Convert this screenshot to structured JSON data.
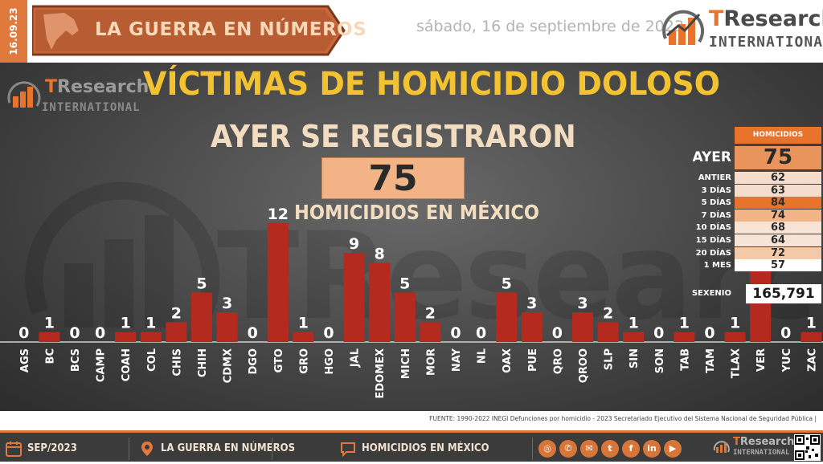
{
  "header": {
    "date_tab": "16.09.23",
    "banner_title": "LA GUERRA EN NÚMEROS",
    "date_long": "sábado, 16 de septiembre de 2023",
    "logo_brand": "TResearch",
    "logo_sub": "INTERNATIONAL"
  },
  "panel": {
    "title": "VÍCTIMAS DE HOMICIDIO DOLOSO",
    "subtitle": "AYER SE REGISTRARON",
    "big_number": "75",
    "big_label": "HOMICIDIOS EN MÉXICO",
    "logo_brand": "TResearch",
    "logo_sub": "INTERNATIONAL",
    "watermark": "TResearch"
  },
  "side_table": {
    "header": "HOMICIDIOS",
    "ayer_label": "AYER",
    "ayer_value": "75",
    "rows": [
      {
        "label": "ANTIER",
        "value": "62",
        "color": "#f5dccb"
      },
      {
        "label": "3 DÍAS",
        "value": "63",
        "color": "#f5dccb"
      },
      {
        "label": "5 DÍAS",
        "value": "84",
        "color": "#e8742c"
      },
      {
        "label": "7 DÍAS",
        "value": "74",
        "color": "#f2b486"
      },
      {
        "label": "10 DÍAS",
        "value": "68",
        "color": "#f8e4d6"
      },
      {
        "label": "15 DÍAS",
        "value": "64",
        "color": "#f8e4d6"
      },
      {
        "label": "20 DÍAS",
        "value": "72",
        "color": "#f4c9a8"
      },
      {
        "label": "1 MES",
        "value": "57",
        "color": "#ffffff"
      }
    ],
    "sexenio_label": "SEXENIO",
    "sexenio_value": "165,791"
  },
  "chart_data": {
    "type": "bar",
    "categories": [
      "AGS",
      "BC",
      "BCS",
      "CAMP",
      "COAH",
      "COL",
      "CHIS",
      "CHIH",
      "CDMX",
      "DGO",
      "GTO",
      "GRO",
      "HGO",
      "JAL",
      "EDOMEX",
      "MICH",
      "MOR",
      "NAY",
      "NL",
      "OAX",
      "PUE",
      "QRO",
      "QROO",
      "SLP",
      "SIN",
      "SON",
      "TAB",
      "TAM",
      "TLAX",
      "VER",
      "YUC",
      "ZAC"
    ],
    "values": [
      0,
      1,
      0,
      0,
      1,
      1,
      2,
      5,
      3,
      0,
      12,
      1,
      0,
      9,
      8,
      5,
      2,
      0,
      0,
      5,
      3,
      0,
      3,
      2,
      1,
      0,
      1,
      0,
      1,
      8,
      0,
      1
    ],
    "ylim": [
      0,
      12
    ],
    "bar_color": "#b52a1e"
  },
  "source": {
    "text": "FUENTE: 1990-2022 INEGI Defunciones por homicidio - 2023 Secretariado Ejecutivo del Sistema Nacional de Seguridad Pública |"
  },
  "footer": {
    "month": "SEP/2023",
    "section": "LA GUERRA EN NÚMEROS",
    "topic": "HOMICIDIOS EN MÉXICO",
    "logo_brand": "TResearch",
    "logo_sub": "INTERNATIONAL",
    "social_icons": [
      "globe-icon",
      "whatsapp-icon",
      "mail-icon",
      "twitter-icon",
      "facebook-icon",
      "linkedin-icon",
      "youtube-icon"
    ]
  }
}
